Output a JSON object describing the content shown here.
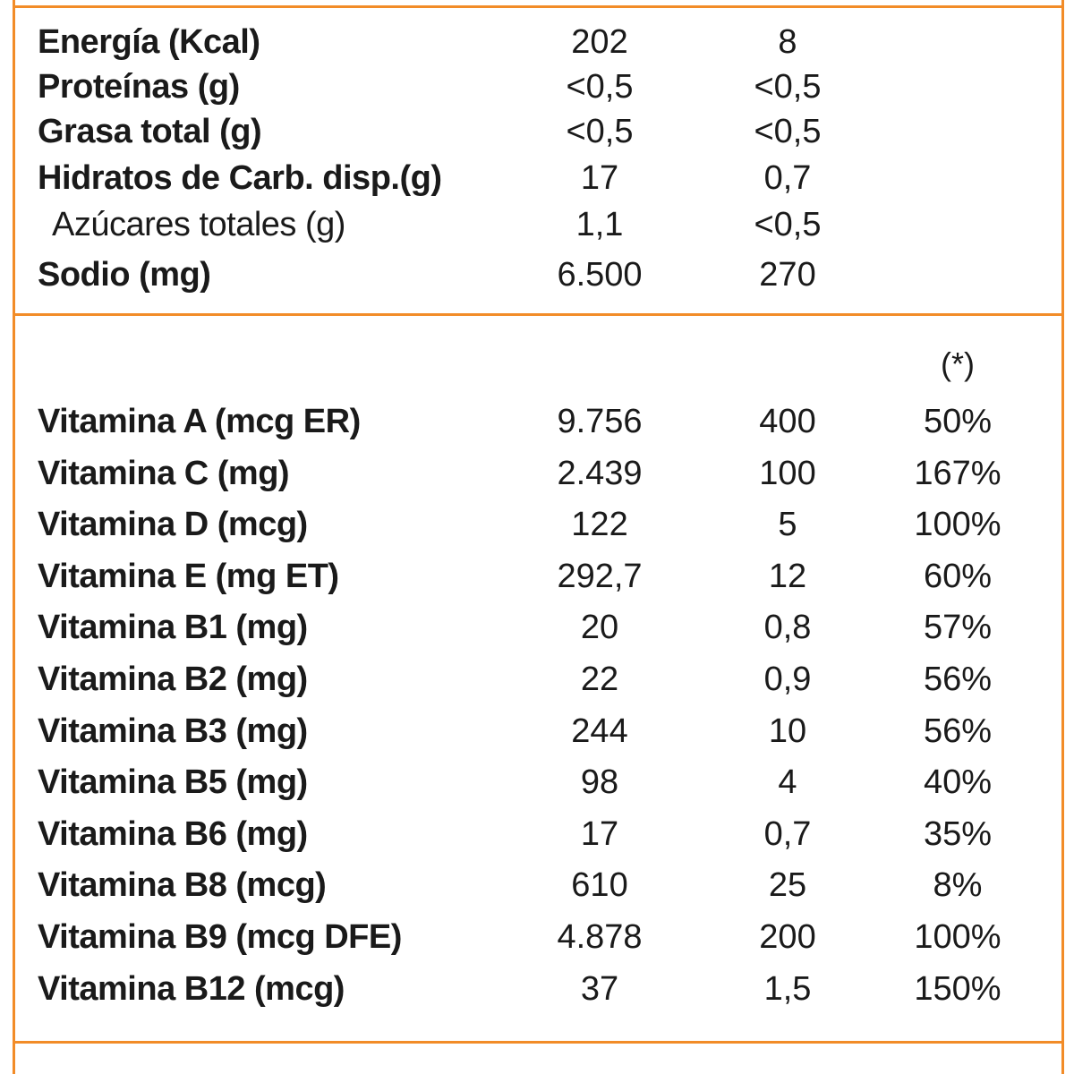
{
  "macros": [
    {
      "label": "Energía (Kcal)",
      "v1": "202",
      "v2": "8",
      "sub": false
    },
    {
      "label": "Proteínas (g)",
      "v1": "<0,5",
      "v2": "<0,5",
      "sub": false
    },
    {
      "label": "Grasa total (g)",
      "v1": "<0,5",
      "v2": "<0,5",
      "sub": false
    },
    {
      "label": "Hidratos de Carb. disp.(g)",
      "v1": "17",
      "v2": "0,7",
      "sub": false
    },
    {
      "label": "Azúcares totales (g)",
      "v1": "1,1",
      "v2": "<0,5",
      "sub": true
    },
    {
      "label": "Sodio (mg)",
      "v1": "6.500",
      "v2": "270",
      "sub": false
    }
  ],
  "vitamins_header": {
    "col3": "(*)"
  },
  "vitamins": [
    {
      "label": "Vitamina A (mcg ER)",
      "v1": "9.756",
      "v2": "400",
      "v3": "50%"
    },
    {
      "label": "Vitamina C (mg)",
      "v1": "2.439",
      "v2": "100",
      "v3": "167%"
    },
    {
      "label": "Vitamina D (mcg)",
      "v1": "122",
      "v2": "5",
      "v3": "100%"
    },
    {
      "label": "Vitamina E (mg ET)",
      "v1": "292,7",
      "v2": "12",
      "v3": "60%"
    },
    {
      "label": "Vitamina B1 (mg)",
      "v1": "20",
      "v2": "0,8",
      "v3": "57%"
    },
    {
      "label": "Vitamina B2 (mg)",
      "v1": "22",
      "v2": "0,9",
      "v3": "56%"
    },
    {
      "label": "Vitamina B3 (mg)",
      "v1": "244",
      "v2": "10",
      "v3": "56%"
    },
    {
      "label": "Vitamina B5 (mg)",
      "v1": "98",
      "v2": "4",
      "v3": "40%"
    },
    {
      "label": "Vitamina B6 (mg)",
      "v1": "17",
      "v2": "0,7",
      "v3": "35%"
    },
    {
      "label": "Vitamina B8 (mcg)",
      "v1": "610",
      "v2": "25",
      "v3": "8%"
    },
    {
      "label": "Vitamina B9 (mcg DFE)",
      "v1": "4.878",
      "v2": "200",
      "v3": "100%"
    },
    {
      "label": "Vitamina B12 (mcg)",
      "v1": "37",
      "v2": "1,5",
      "v3": "150%"
    }
  ],
  "colors": {
    "border": "#f28c28",
    "text": "#1a1a1a"
  }
}
